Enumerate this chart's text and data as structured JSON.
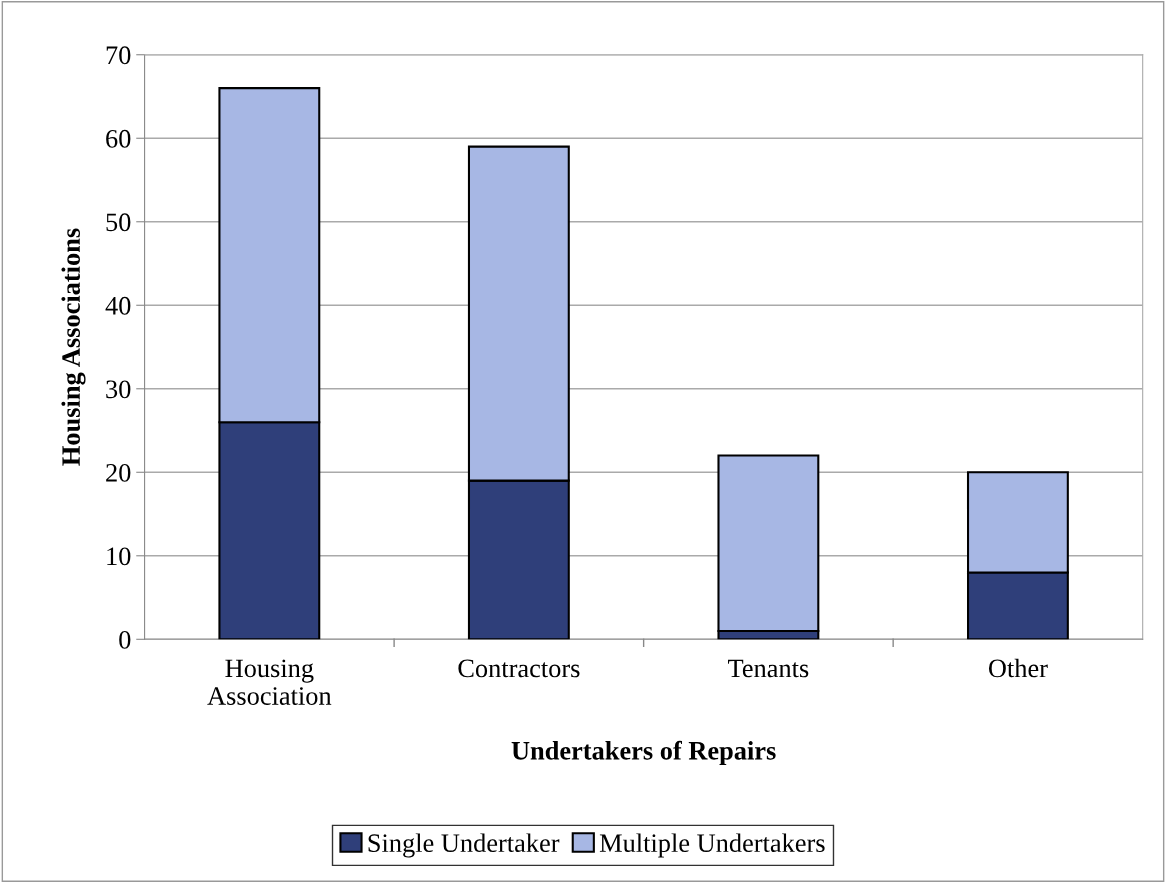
{
  "chart_data": {
    "type": "bar",
    "stacked": true,
    "xlabel": "Undertakers of Repairs",
    "ylabel": "Housing Associations",
    "categories": [
      "Housing\nAssociation",
      "Contractors",
      "Tenants",
      "Other"
    ],
    "series": [
      {
        "name": "Single Undertaker",
        "color": "#2f3f7a",
        "values": [
          26,
          19,
          1,
          8
        ]
      },
      {
        "name": "Multiple Undertakers",
        "color": "#a7b7e4",
        "values": [
          40,
          40,
          21,
          12
        ]
      }
    ],
    "ylim": [
      0,
      70
    ],
    "yticks": [
      0,
      10,
      20,
      30,
      40,
      50,
      60,
      70
    ],
    "grid": "y",
    "legend": "bottom"
  }
}
